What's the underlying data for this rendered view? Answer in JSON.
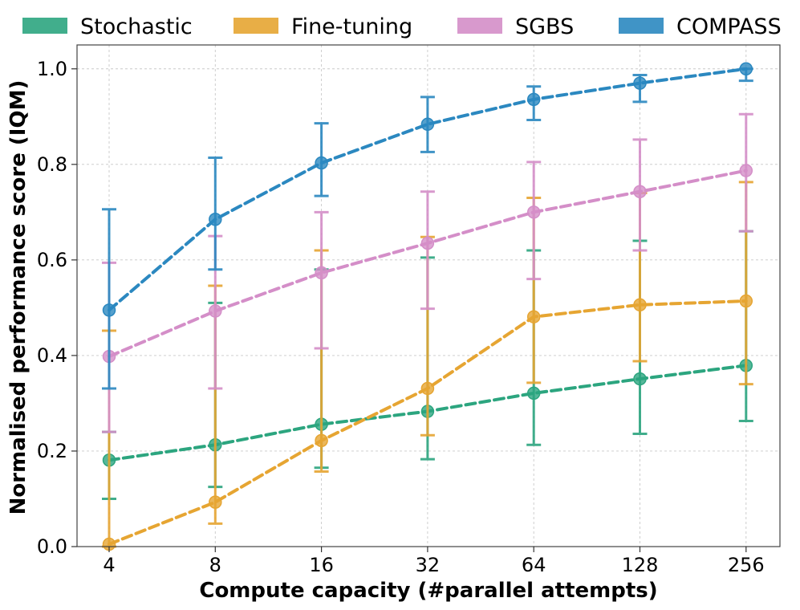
{
  "chart_data": {
    "type": "line",
    "title": "",
    "xlabel": "Compute capacity (#parallel attempts)",
    "ylabel": "Normalised performance score (IQM)",
    "categories": [
      "4",
      "8",
      "16",
      "32",
      "64",
      "128",
      "256"
    ],
    "ylim": [
      0.0,
      1.05
    ],
    "yticks": [
      0.0,
      0.2,
      0.4,
      0.6,
      0.8,
      1.0
    ],
    "ytick_labels": [
      "0.0",
      "0.2",
      "0.4",
      "0.6",
      "0.8",
      "1.0"
    ],
    "grid": true,
    "legend_position": "top",
    "series": [
      {
        "name": "Stochastic",
        "color": "#2ca57f",
        "values": [
          0.181,
          0.213,
          0.256,
          0.283,
          0.321,
          0.351,
          0.379
        ],
        "err_low": [
          0.1,
          0.125,
          0.165,
          0.183,
          0.213,
          0.236,
          0.263
        ],
        "err_high": [
          0.24,
          0.51,
          0.58,
          0.605,
          0.62,
          0.64,
          0.66
        ]
      },
      {
        "name": "Fine-tuning",
        "color": "#e6a532",
        "values": [
          0.005,
          0.093,
          0.222,
          0.331,
          0.481,
          0.506,
          0.514
        ],
        "err_low": [
          0.0,
          0.048,
          0.157,
          0.233,
          0.343,
          0.388,
          0.34
        ],
        "err_high": [
          0.452,
          0.546,
          0.62,
          0.648,
          0.73,
          0.74,
          0.763
        ]
      },
      {
        "name": "SGBS",
        "color": "#d48ec8",
        "values": [
          0.398,
          0.493,
          0.573,
          0.635,
          0.7,
          0.743,
          0.787
        ],
        "err_low": [
          0.24,
          0.331,
          0.415,
          0.498,
          0.56,
          0.62,
          0.66
        ],
        "err_high": [
          0.594,
          0.65,
          0.7,
          0.743,
          0.805,
          0.852,
          0.905
        ]
      },
      {
        "name": "COMPASS",
        "color": "#2b88c0",
        "values": [
          0.495,
          0.685,
          0.803,
          0.884,
          0.936,
          0.97,
          1.0
        ],
        "err_low": [
          0.331,
          0.58,
          0.734,
          0.826,
          0.893,
          0.931,
          0.975
        ],
        "err_high": [
          0.706,
          0.814,
          0.886,
          0.941,
          0.963,
          0.987,
          1.0
        ]
      }
    ]
  }
}
